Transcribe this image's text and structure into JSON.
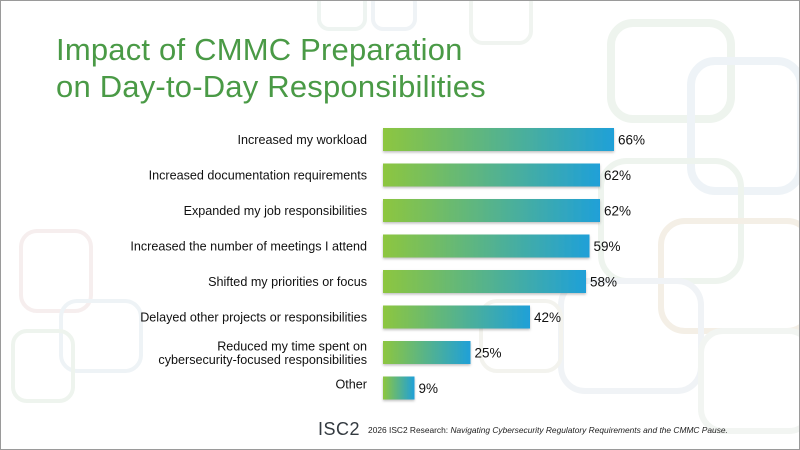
{
  "slide": {
    "title_lines": [
      "Impact of CMMC Preparation",
      "on Day-to-Day Responsibilities"
    ],
    "footer": {
      "logo": "ISC2",
      "source_prefix": "2026 ISC2 Research: ",
      "source_title": "Navigating Cybersecurity Regulatory Requirements and the CMMC Pause."
    }
  },
  "colors": {
    "title": "#4a9a46",
    "bar_start": "#8dc63f",
    "bar_end": "#1fa0d8"
  },
  "chart_data": {
    "type": "bar",
    "orientation": "horizontal",
    "categories": [
      "Increased my workload",
      "Increased documentation requirements",
      "Expanded my job responsibilities",
      "Increased the number of meetings I attend",
      "Shifted my priorities or focus",
      "Delayed other projects or responsibilities",
      "Reduced my time spent on\ncybersecurity-focused responsibilities",
      "Other"
    ],
    "values": [
      66,
      62,
      62,
      59,
      58,
      42,
      25,
      9
    ],
    "value_labels": [
      "66%",
      "62%",
      "62%",
      "59%",
      "58%",
      "42%",
      "25%",
      "9%"
    ],
    "unit": "%",
    "xlim": [
      0,
      100
    ],
    "grid": false,
    "legend": "none"
  }
}
